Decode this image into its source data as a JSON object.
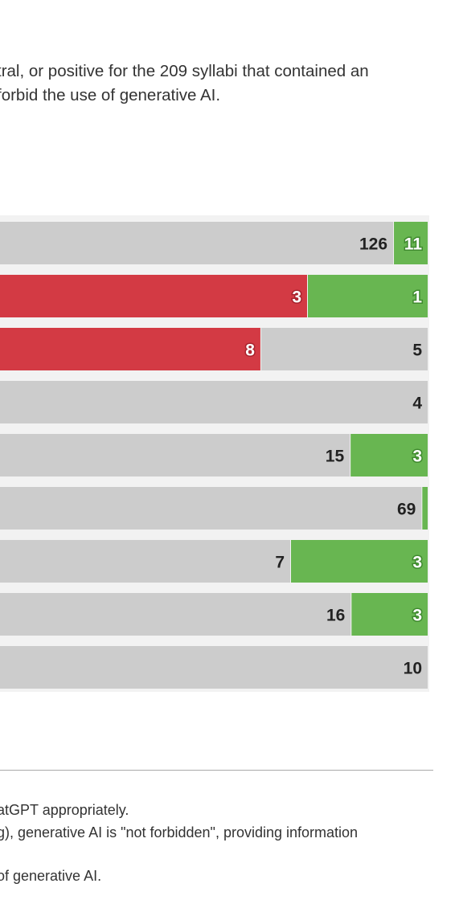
{
  "subtitle": {
    "line1": "tral, or positive for the 209 syllabi that contained an",
    "line2": "forbid the use of generative AI."
  },
  "colors": {
    "negative": "#d33a44",
    "neutral": "#cccccc",
    "positive": "#68b651",
    "row_background": "#f2f2f2",
    "label_dark": "#222222",
    "label_light": "#ffffff"
  },
  "chart_data": {
    "type": "bar",
    "orientation": "horizontal",
    "stacked": true,
    "categories_visible": false,
    "rows": [
      {
        "neutral": 126,
        "positive": 11
      },
      {
        "negative": 3,
        "positive": 1
      },
      {
        "negative": 8,
        "neutral": 5
      },
      {
        "neutral": 4
      },
      {
        "neutral": 15,
        "positive": 3
      },
      {
        "neutral": 69,
        "positive": 1
      },
      {
        "neutral": 7,
        "positive": 3
      },
      {
        "neutral": 16,
        "positive": 3
      },
      {
        "neutral": 10
      }
    ],
    "segment_labels": [
      {
        "neutral": "126",
        "positive": "11"
      },
      {
        "negative": "3",
        "positive": "1"
      },
      {
        "negative": "8",
        "neutral": "5"
      },
      {
        "neutral": "4"
      },
      {
        "neutral": "15",
        "positive": "3"
      },
      {
        "neutral": "69",
        "positive": ""
      },
      {
        "neutral": "7",
        "positive": "3"
      },
      {
        "neutral": "16",
        "positive": "3"
      },
      {
        "neutral": "10"
      }
    ]
  },
  "notes": {
    "line1": "atGPT appropriately.",
    "line2": "g), generative AI is \"not forbidden\", providing information",
    "line3": "of generative AI."
  }
}
